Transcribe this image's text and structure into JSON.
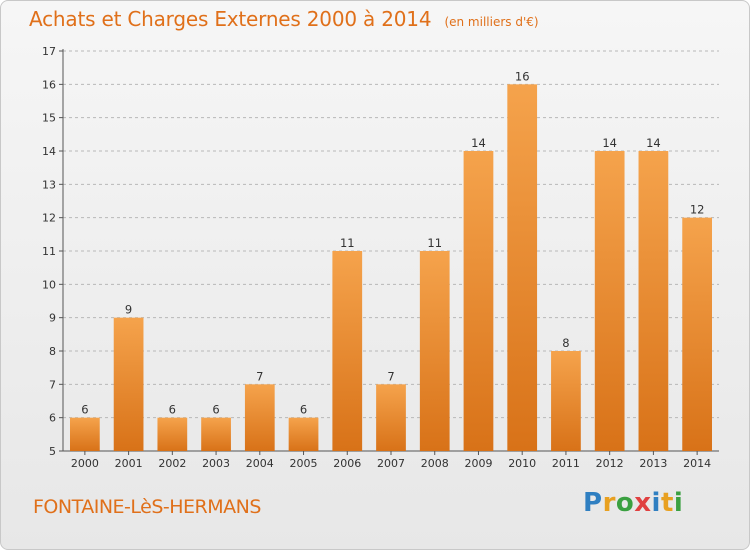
{
  "header": {
    "title": "Achats et Charges Externes 2000 à 2014",
    "subtitle": "(en milliers d'€)"
  },
  "footer": {
    "commune": "FONTAINE-LèS-HERMANS",
    "logo_letters": [
      "P",
      "r",
      "o",
      "x",
      "i",
      "t",
      "i"
    ],
    "logo_colors": [
      "#2f7fc1",
      "#e8a020",
      "#3aa040",
      "#e04040",
      "#2f7fc1",
      "#e8a020",
      "#3aa040"
    ]
  },
  "chart_data": {
    "type": "bar",
    "title": "Achats et Charges Externes 2000 à 2014",
    "subtitle": "(en milliers d'€)",
    "categories": [
      "2000",
      "2001",
      "2002",
      "2003",
      "2004",
      "2005",
      "2006",
      "2007",
      "2008",
      "2009",
      "2010",
      "2011",
      "2012",
      "2013",
      "2014"
    ],
    "values": [
      6,
      9,
      6,
      6,
      7,
      6,
      11,
      7,
      11,
      14,
      16,
      8,
      14,
      14,
      12
    ],
    "yticks": [
      5,
      6,
      7,
      8,
      9,
      10,
      11,
      12,
      13,
      14,
      15,
      16,
      17
    ],
    "ylim": [
      5,
      17
    ],
    "grid": true,
    "bar_color_top": "#f5a34c",
    "bar_color_bottom": "#d87218"
  }
}
